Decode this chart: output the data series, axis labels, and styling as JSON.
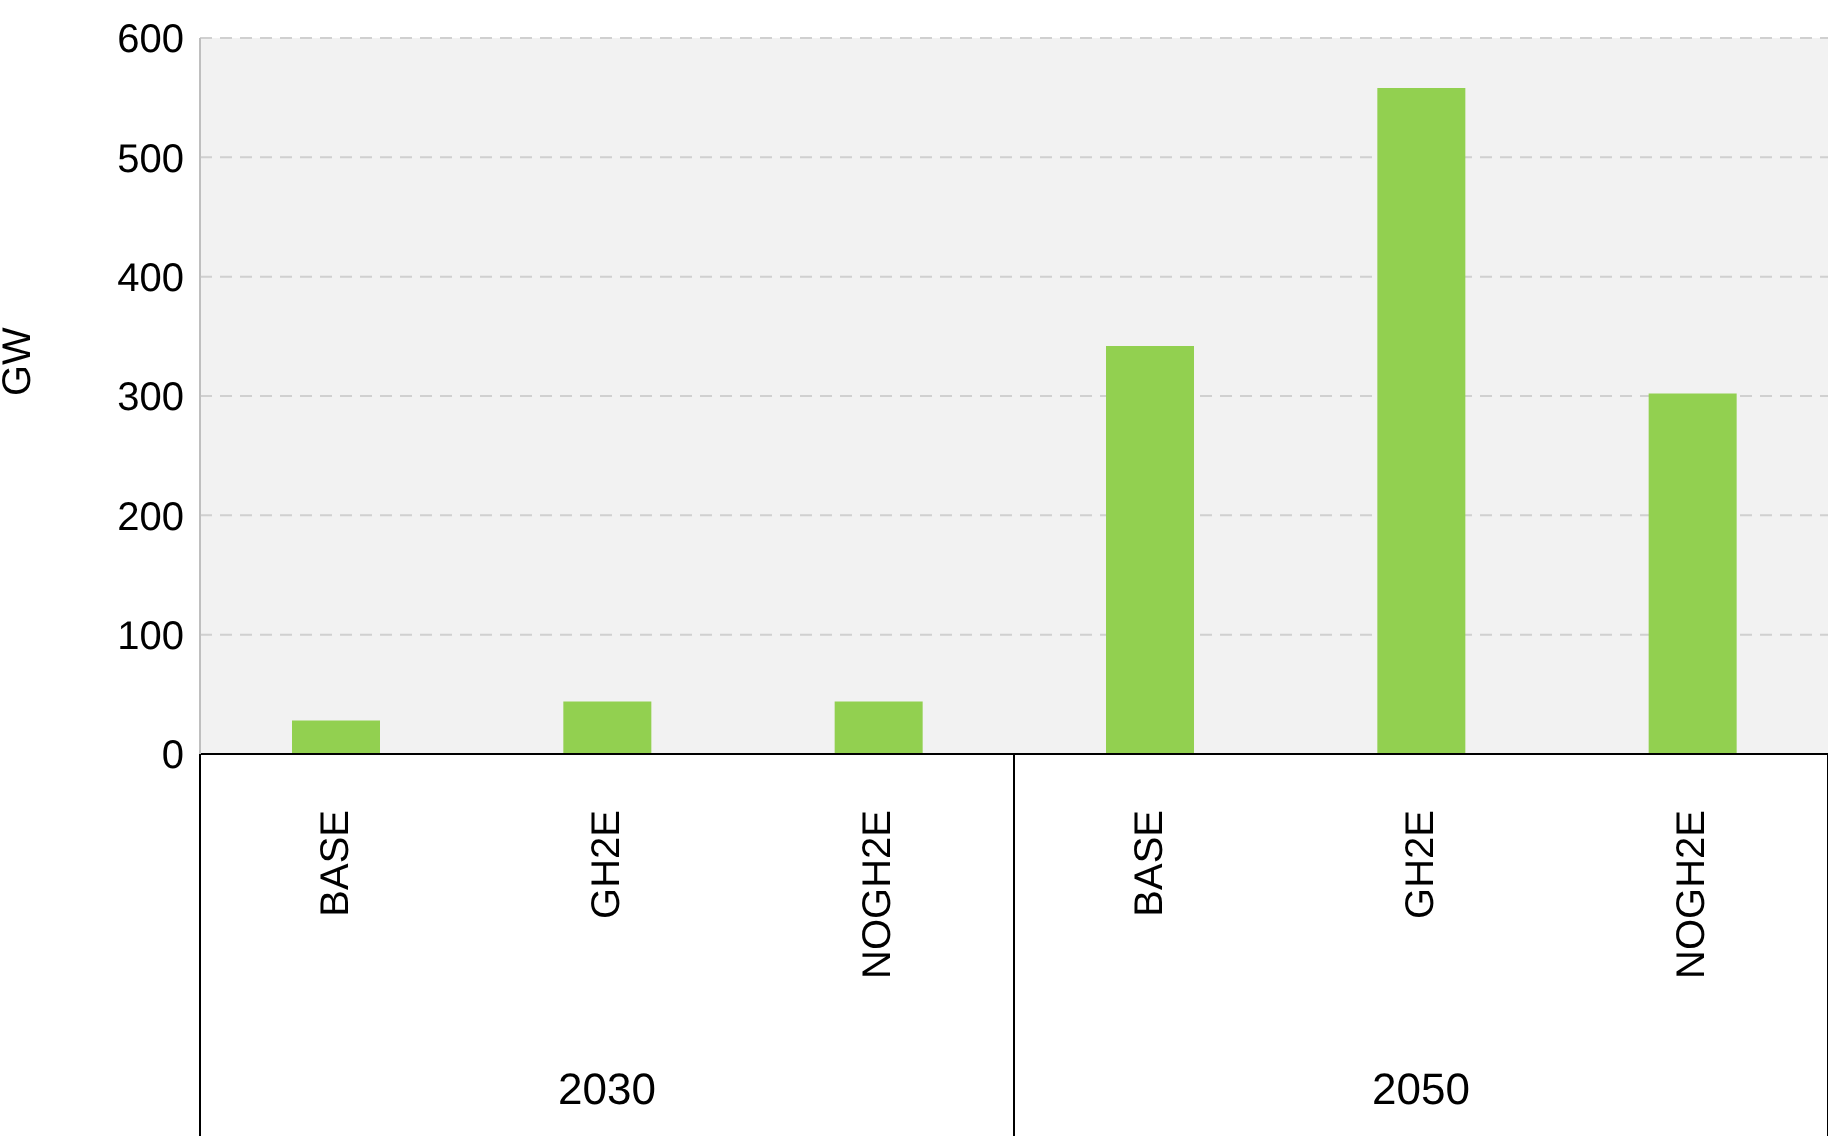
{
  "chart_data": {
    "type": "bar",
    "ylabel": "GW",
    "categories": [
      "BASE",
      "GH2E",
      "NOGH2E",
      "BASE",
      "GH2E",
      "NOGH2E"
    ],
    "values": [
      28,
      44,
      44,
      342,
      558,
      302
    ],
    "color": "#92d050",
    "ylim": [
      0,
      600
    ],
    "yticks": [
      0,
      100,
      200,
      300,
      400,
      500,
      600
    ],
    "grid": "y",
    "annotations": [
      "2030",
      "2050"
    ]
  }
}
